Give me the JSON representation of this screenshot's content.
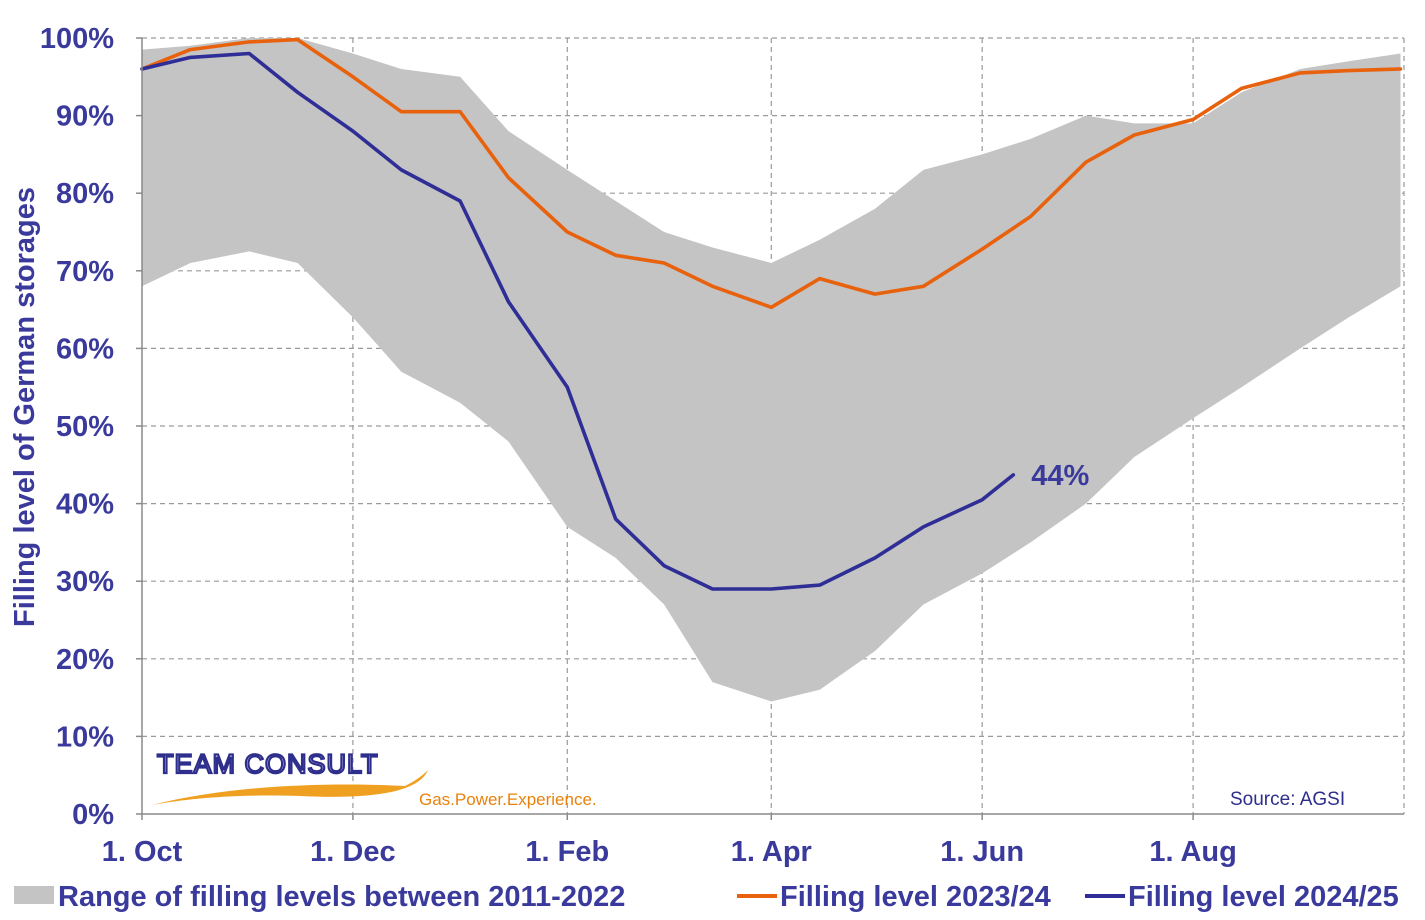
{
  "chart_data": {
    "type": "line",
    "xlabel": "",
    "ylabel": "Filling level of German storages",
    "ylim": [
      0,
      100
    ],
    "yticks": [
      "0%",
      "10%",
      "20%",
      "30%",
      "40%",
      "50%",
      "60%",
      "70%",
      "80%",
      "90%",
      "100%"
    ],
    "xticks": [
      "1. Oct",
      "1. Dec",
      "1. Feb",
      "1. Apr",
      "1. Jun",
      "1. Aug"
    ],
    "grid": true,
    "legend_position": "bottom",
    "band": {
      "name": "Range of filling levels between 2011-2022",
      "color": "#c4c4c4",
      "x": [
        "1. Oct",
        "15. Oct",
        "1. Nov",
        "15. Nov",
        "1. Dec",
        "15. Dec",
        "1. Jan",
        "15. Jan",
        "1. Feb",
        "15. Feb",
        "1. Mar",
        "15. Mar",
        "1. Apr",
        "15. Apr",
        "1. May",
        "15. May",
        "1. Jun",
        "15. Jun",
        "1. Jul",
        "15. Jul",
        "1. Aug",
        "15. Aug",
        "1. Sep",
        "15. Sep",
        "30. Sep"
      ],
      "upper": [
        98.5,
        99,
        100,
        100,
        98,
        96,
        95,
        88,
        83,
        79,
        75,
        73,
        71,
        74,
        78,
        83,
        85,
        87,
        90,
        89,
        89,
        93,
        96,
        97,
        98
      ],
      "lower": [
        68,
        71,
        72.5,
        71,
        64,
        57,
        53,
        48,
        37,
        33,
        27,
        17,
        14.5,
        16,
        21,
        27,
        31,
        35,
        40,
        46,
        51,
        55,
        60,
        64,
        68
      ]
    },
    "series": [
      {
        "name": "Filling level 2023/24",
        "color": "#e8620e",
        "x": [
          "1. Oct",
          "15. Oct",
          "1. Nov",
          "15. Nov",
          "1. Dec",
          "15. Dec",
          "1. Jan",
          "15. Jan",
          "1. Feb",
          "15. Feb",
          "1. Mar",
          "15. Mar",
          "1. Apr",
          "15. Apr",
          "1. May",
          "15. May",
          "1. Jun",
          "15. Jun",
          "1. Jul",
          "15. Jul",
          "1. Aug",
          "15. Aug",
          "1. Sep",
          "15. Sep",
          "30. Sep"
        ],
        "values": [
          96,
          98.5,
          99.5,
          99.8,
          95,
          90.5,
          90.5,
          82,
          75,
          72,
          71,
          68,
          65.3,
          69,
          67,
          68,
          72.8,
          77,
          84,
          87.5,
          89.5,
          93.5,
          95.5,
          95.8,
          96
        ]
      },
      {
        "name": "Filling level 2024/25",
        "color": "#2e2e96",
        "x": [
          "1. Oct",
          "15. Oct",
          "1. Nov",
          "15. Nov",
          "1. Dec",
          "15. Dec",
          "1. Jan",
          "15. Jan",
          "1. Feb",
          "15. Feb",
          "1. Mar",
          "15. Mar",
          "1. Apr",
          "15. Apr",
          "1. May",
          "15. May",
          "1. Jun",
          "10. Jun"
        ],
        "values": [
          96,
          97.5,
          98,
          93,
          88,
          83,
          79,
          66,
          55,
          38,
          32,
          29,
          29,
          29.5,
          33,
          37,
          40.5,
          43.7
        ]
      }
    ],
    "annotations": [
      {
        "text": "44%",
        "series": "Filling level 2024/25"
      }
    ]
  },
  "logo": {
    "name": "TEAM CONSULT",
    "tagline": "Gas.Power.Experience."
  },
  "source_text": "Source:  AGSI"
}
